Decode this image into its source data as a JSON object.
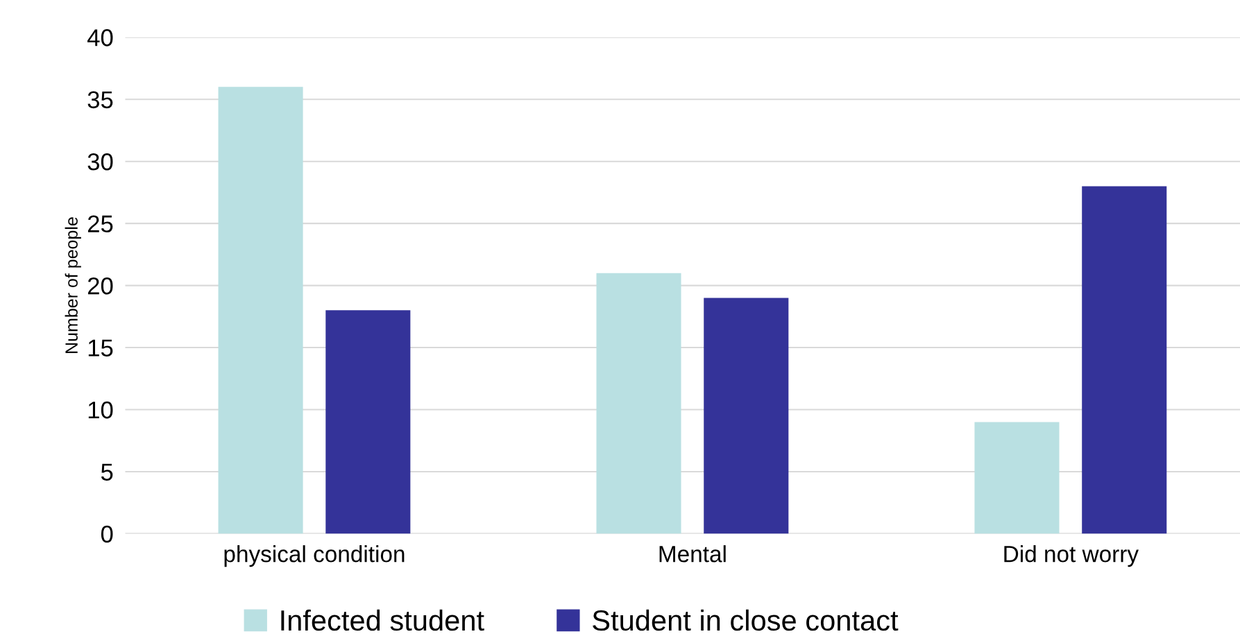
{
  "chart_data": {
    "type": "bar",
    "ylabel": "Number of people",
    "categories": [
      "physical condition",
      "Mental",
      "Did not worry"
    ],
    "series": [
      {
        "name": "Infected student",
        "color": "#b9e0e2",
        "values": [
          36,
          21,
          9
        ]
      },
      {
        "name": "Student in close contact",
        "color": "#343399",
        "values": [
          18,
          19,
          28
        ]
      }
    ],
    "ylim": [
      0,
      40
    ],
    "yticks": [
      0,
      5,
      10,
      15,
      20,
      25,
      30,
      35,
      40
    ],
    "grid": "y",
    "legend": "bottom"
  }
}
